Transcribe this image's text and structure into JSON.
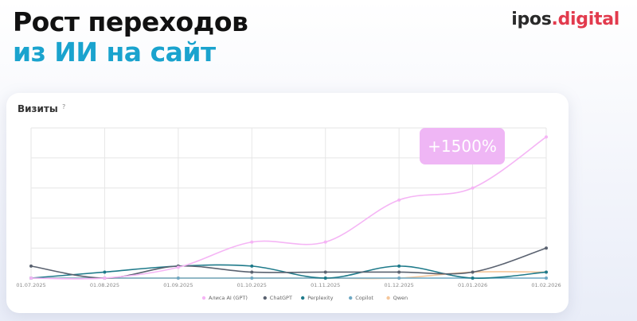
{
  "header": {
    "title_line1": "Рост переходов",
    "title_line2": "из ИИ на сайт",
    "brand_part1": "ipos",
    "brand_part2": ".digital"
  },
  "colors": {
    "title_accent": "#1aa3ce",
    "brand_dot": "#e23a4d",
    "badge": "#efb6f5"
  },
  "chart_data": {
    "type": "line",
    "title": "Визиты",
    "help": "?",
    "badge": "+1500%",
    "x": [
      "01.07.2025",
      "01.08.2025",
      "01.09.2025",
      "01.10.2025",
      "01.11.2025",
      "01.12.2025",
      "01.01.2026",
      "01.02.2026"
    ],
    "ylim": [
      0,
      250
    ],
    "grid": true,
    "legend_position": "bottom",
    "series": [
      {
        "name": "Алиса AI (GPT)",
        "color": "#f5b5f5",
        "values": [
          0,
          0,
          18,
          60,
          60,
          130,
          150,
          235
        ]
      },
      {
        "name": "ChatGPT",
        "color": "#5a6270",
        "values": [
          20,
          0,
          20,
          10,
          10,
          10,
          10,
          50
        ]
      },
      {
        "name": "Perplexity",
        "color": "#1e7a8a",
        "values": [
          0,
          10,
          20,
          20,
          0,
          20,
          0,
          10
        ]
      },
      {
        "name": "Copilot",
        "color": "#6fa9c4",
        "values": [
          0,
          0,
          0,
          0,
          0,
          0,
          0,
          0
        ]
      },
      {
        "name": "Qwen",
        "color": "#f5c69a",
        "values": [
          0,
          0,
          0,
          0,
          0,
          0,
          10,
          10
        ]
      }
    ]
  }
}
